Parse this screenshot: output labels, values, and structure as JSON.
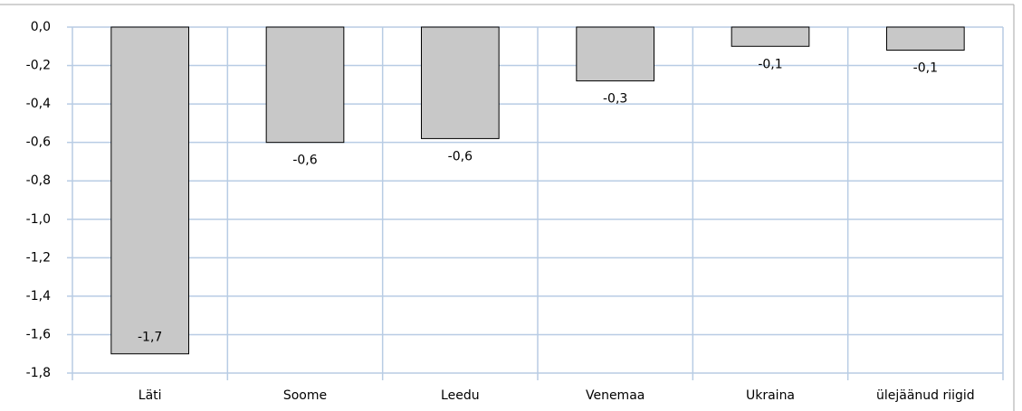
{
  "chart_data": {
    "type": "bar",
    "categories": [
      "Läti",
      "Soome",
      "Leedu",
      "Venemaa",
      "Ukraina",
      "ülejäänud riigid"
    ],
    "values": [
      -1.7,
      -0.6,
      -0.58,
      -0.28,
      -0.1,
      -0.12
    ],
    "value_labels": [
      "-1,7",
      "-0,6",
      "-0,6",
      "-0,3",
      "-0,1",
      "-0,1"
    ],
    "color": "#c8c8c8",
    "ylim": [
      -1.8,
      0
    ],
    "yticks": [
      {
        "value": 0,
        "label": "0,0"
      },
      {
        "value": -0.2,
        "label": "-0,2"
      },
      {
        "value": -0.4,
        "label": "-0,4"
      },
      {
        "value": -0.6,
        "label": "-0,6"
      },
      {
        "value": -0.8,
        "label": "-0,8"
      },
      {
        "value": -1.0,
        "label": "-1,0"
      },
      {
        "value": -1.2,
        "label": "-1,2"
      },
      {
        "value": -1.4,
        "label": "-1,4"
      },
      {
        "value": -1.6,
        "label": "-1,6"
      },
      {
        "value": -1.8,
        "label": "-1,8"
      }
    ],
    "grid": true
  }
}
